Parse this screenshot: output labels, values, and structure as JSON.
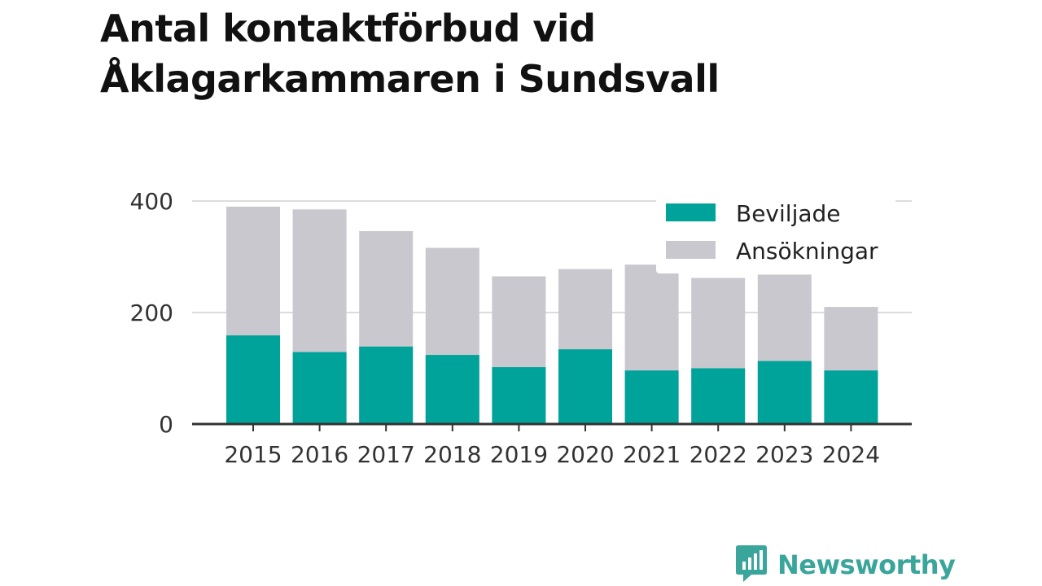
{
  "chart_data": {
    "type": "bar",
    "stacked": false,
    "overlaid": true,
    "title": "Antal kontaktförbud vid Åklagarkammaren i Sundsvall",
    "xlabel": "",
    "ylabel": "",
    "categories": [
      "2015",
      "2016",
      "2017",
      "2018",
      "2019",
      "2020",
      "2021",
      "2022",
      "2023",
      "2024"
    ],
    "series": [
      {
        "name": "Ansökningar",
        "color": "#c9c8cf",
        "values": [
          390,
          385,
          346,
          316,
          265,
          278,
          286,
          262,
          268,
          210
        ]
      },
      {
        "name": "Beviljade",
        "color": "#00a39a",
        "values": [
          159,
          129,
          139,
          124,
          102,
          134,
          96,
          100,
          113,
          96
        ]
      }
    ],
    "legend": [
      {
        "label": "Beviljade",
        "color": "#00a39a"
      },
      {
        "label": "Ansökningar",
        "color": "#c9c8cf"
      }
    ],
    "legend_position": "top-right",
    "ylim": [
      0,
      400
    ],
    "yticks": [
      0,
      200,
      400
    ],
    "grid": true
  },
  "brand": {
    "name": "Newsworthy",
    "icon": "newsworthy-logo-icon",
    "color": "#3aa59a"
  }
}
